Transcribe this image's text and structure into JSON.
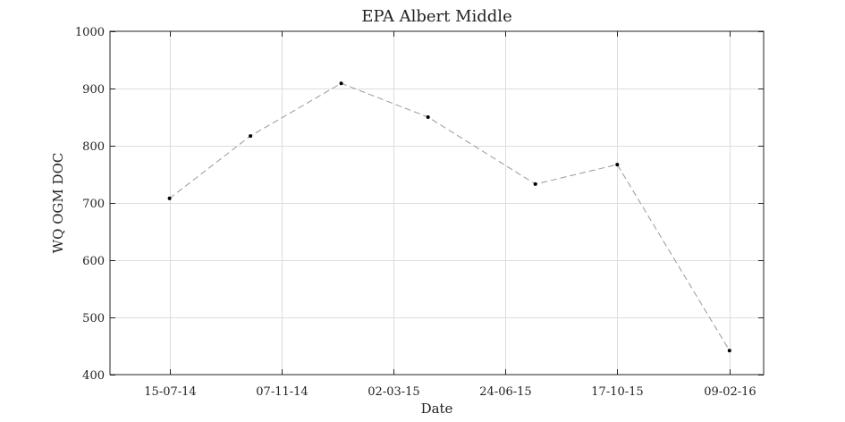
{
  "chart_data": {
    "type": "line",
    "title": "EPA Albert Middle",
    "xlabel": "Date",
    "ylabel": "WQ OGM DOC",
    "x": [
      "2014-07-15",
      "2014-10-06",
      "2015-01-07",
      "2015-04-06",
      "2015-07-25",
      "2015-10-17",
      "2016-02-09"
    ],
    "values": [
      708,
      817,
      909,
      850,
      733,
      767,
      442
    ],
    "xlim": [
      "2014-05-15",
      "2016-03-15"
    ],
    "ylim": [
      400,
      1000
    ],
    "xticks": [
      "2014-07-15",
      "2014-11-07",
      "2015-03-02",
      "2015-06-24",
      "2015-10-17",
      "2016-02-09"
    ],
    "xtick_labels": [
      "15-07-14",
      "07-11-14",
      "02-03-15",
      "24-06-15",
      "17-10-15",
      "09-02-16"
    ],
    "yticks": [
      400,
      500,
      600,
      700,
      800,
      900,
      1000
    ],
    "grid": true,
    "line_style": "dashed",
    "line_color": "#999999",
    "marker_color": "#000000"
  }
}
